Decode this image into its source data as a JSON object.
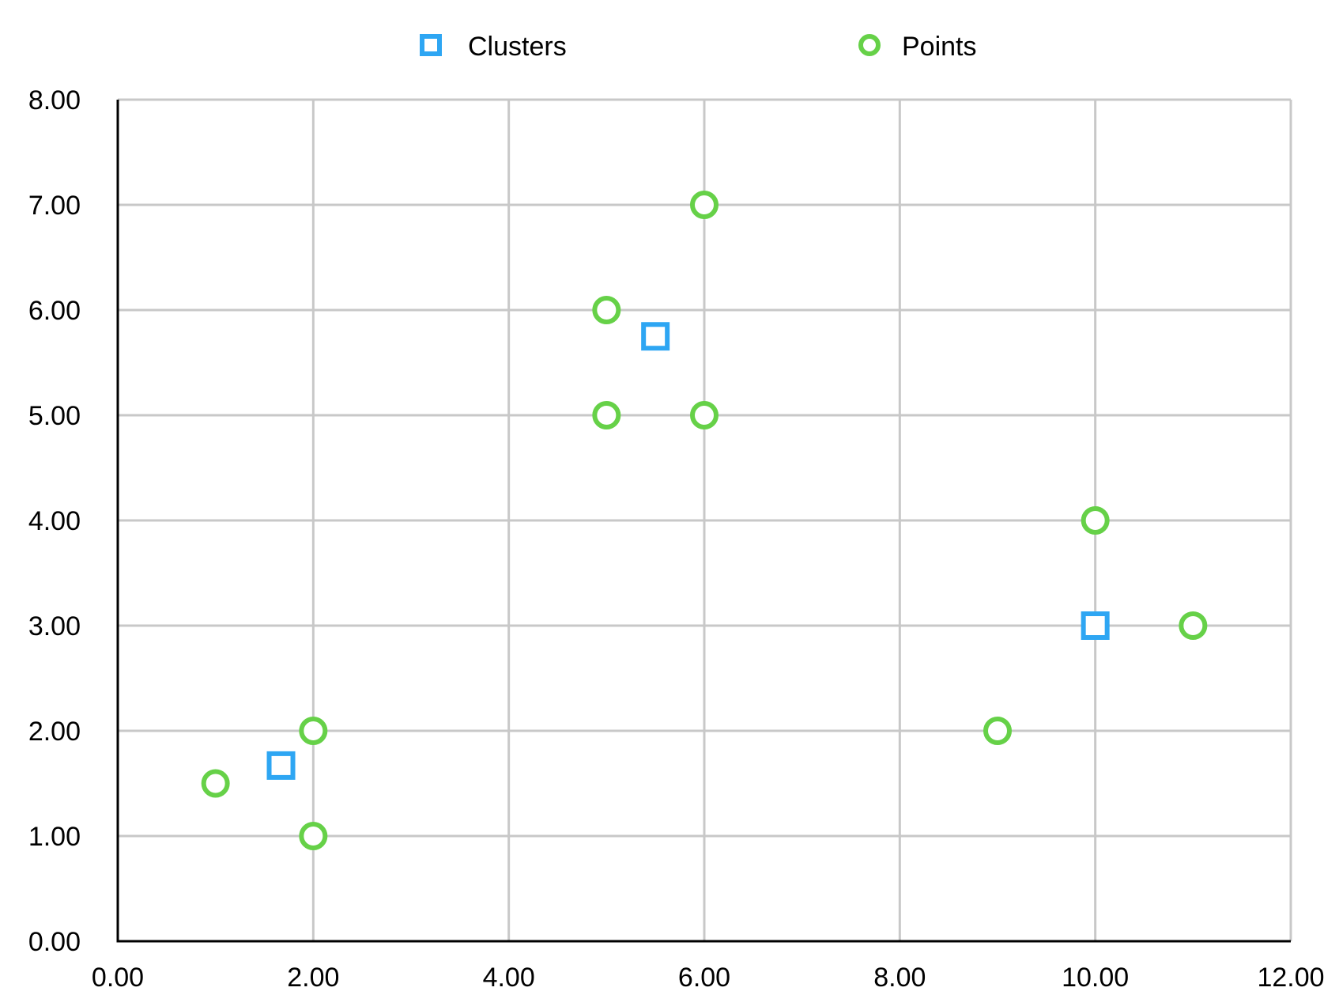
{
  "chart_data": {
    "type": "scatter",
    "title": "",
    "xlabel": "",
    "ylabel": "",
    "xlim": [
      0,
      12
    ],
    "ylim": [
      0,
      8
    ],
    "x_ticks": [
      "0.00",
      "2.00",
      "4.00",
      "6.00",
      "8.00",
      "10.00",
      "12.00"
    ],
    "y_ticks": [
      "0.00",
      "1.00",
      "2.00",
      "3.00",
      "4.00",
      "5.00",
      "6.00",
      "7.00",
      "8.00"
    ],
    "grid": true,
    "legend_position": "top-center",
    "series": [
      {
        "name": "Clusters",
        "marker": "square",
        "color": "#2ea6f3",
        "points": [
          {
            "x": 1.67,
            "y": 1.67
          },
          {
            "x": 5.5,
            "y": 5.75
          },
          {
            "x": 10.0,
            "y": 3.0
          }
        ]
      },
      {
        "name": "Points",
        "marker": "circle",
        "color": "#66d148",
        "points": [
          {
            "x": 1.0,
            "y": 1.5
          },
          {
            "x": 2.0,
            "y": 2.0
          },
          {
            "x": 2.0,
            "y": 1.0
          },
          {
            "x": 5.0,
            "y": 6.0
          },
          {
            "x": 5.0,
            "y": 5.0
          },
          {
            "x": 6.0,
            "y": 7.0
          },
          {
            "x": 6.0,
            "y": 5.0
          },
          {
            "x": 9.0,
            "y": 2.0
          },
          {
            "x": 10.0,
            "y": 4.0
          },
          {
            "x": 11.0,
            "y": 3.0
          }
        ]
      }
    ]
  }
}
